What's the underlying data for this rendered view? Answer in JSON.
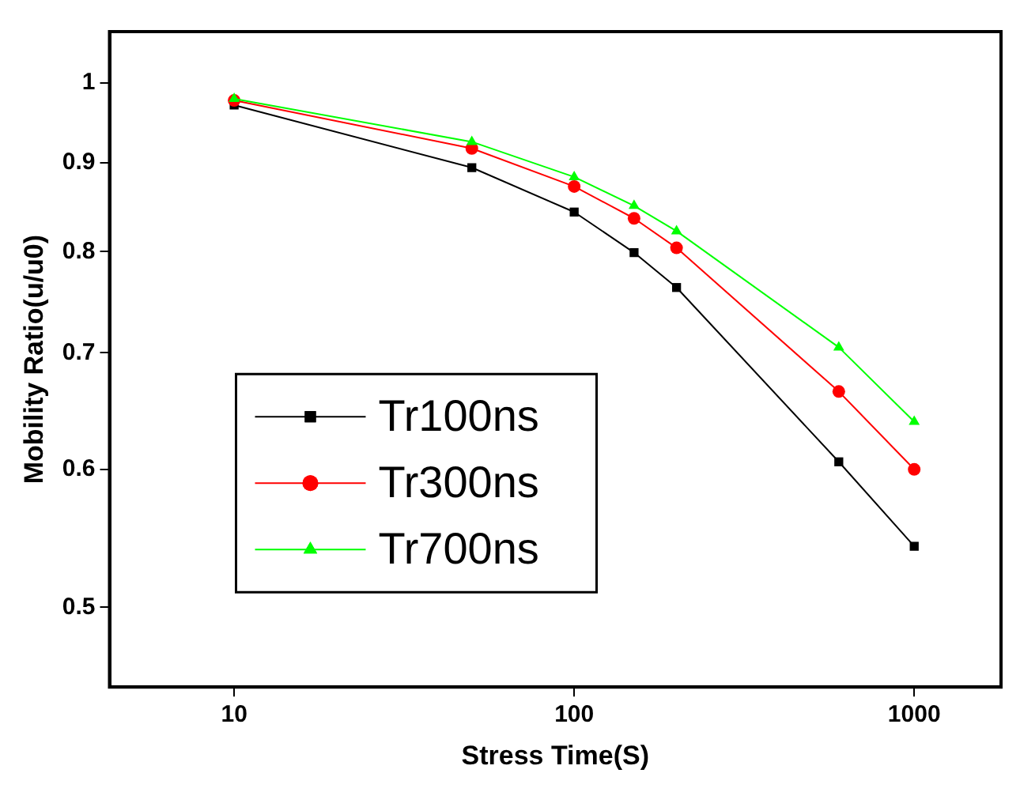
{
  "chart_data": {
    "type": "line",
    "xlabel": "Stress Time(S)",
    "ylabel": "Mobility Ratio(u/u0)",
    "x": [
      10,
      50,
      100,
      150,
      200,
      600,
      1000
    ],
    "series": [
      {
        "name": "Tr100ns",
        "color": "#000000",
        "marker": "square",
        "values": [
          0.971,
          0.894,
          0.843,
          0.799,
          0.763,
          0.606,
          0.542
        ]
      },
      {
        "name": "Tr300ns",
        "color": "#ff0000",
        "marker": "circle",
        "values": [
          0.977,
          0.917,
          0.872,
          0.836,
          0.804,
          0.665,
          0.6
        ]
      },
      {
        "name": "Tr700ns",
        "color": "#00ff00",
        "marker": "triangle",
        "values": [
          0.979,
          0.925,
          0.883,
          0.85,
          0.822,
          0.705,
          0.639
        ]
      }
    ],
    "log": "xy",
    "xlim": [
      4.3,
      1800
    ],
    "ylim": [
      0.45,
      1.07
    ],
    "xticks": [
      10,
      100,
      1000
    ],
    "yticks": [
      0.5,
      0.6,
      0.7,
      0.8,
      0.9,
      1
    ],
    "grid": false,
    "legend": "bottom left",
    "line_style": "solid"
  }
}
